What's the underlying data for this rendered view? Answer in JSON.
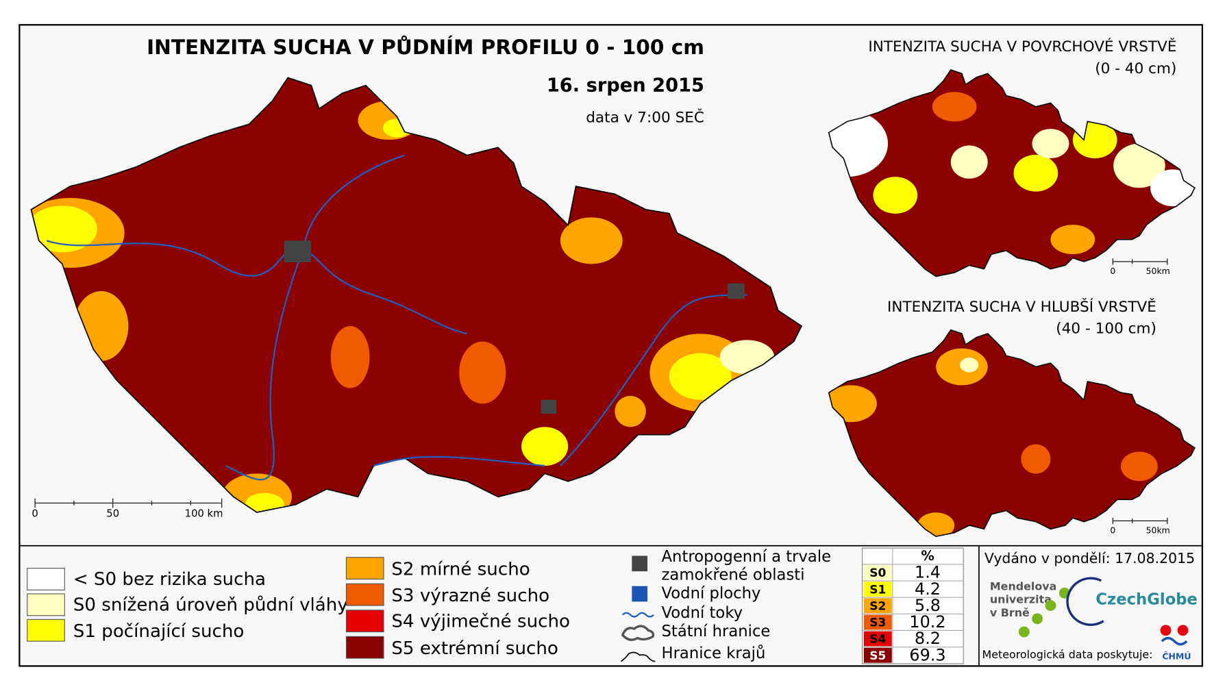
{
  "header": {
    "title": "INTENZITA SUCHA V PŮDNÍM PROFILU 0 - 100 cm",
    "date": "16. srpen 2015",
    "data_time": "data v 7:00 SEČ"
  },
  "main_map": {
    "scale_labels": [
      "0",
      "50",
      "100 km"
    ]
  },
  "insets": [
    {
      "title": "INTENZITA SUCHA V POVRCHOVÉ VRSTVĚ",
      "depth": "(0 - 40 cm)",
      "scale_labels": [
        "0",
        "50km"
      ]
    },
    {
      "title": "INTENZITA SUCHA V HLUBŠÍ VRSTVĚ",
      "depth": "(40 - 100 cm)",
      "scale_labels": [
        "0",
        "50km"
      ]
    }
  ],
  "legend": {
    "classes": [
      {
        "label": "< S0 bez rizika sucha",
        "color": "#ffffff"
      },
      {
        "label": "S0 snížená úroveň půdní vláhy",
        "color": "#ffffc0"
      },
      {
        "label": "S1 počínající sucho",
        "color": "#ffff00"
      },
      {
        "label": "S2 mírné sucho",
        "color": "#ffa500"
      },
      {
        "label": "S3 výrazné sucho",
        "color": "#f05a00"
      },
      {
        "label": "S4 výjimečné sucho",
        "color": "#e60000"
      },
      {
        "label": "S5 extrémní sucho",
        "color": "#8b0000"
      }
    ],
    "symbols": {
      "anthropogenic": [
        "Antropogenní a trvale",
        "zamokřené oblasti"
      ],
      "water_bodies": "Vodní plochy",
      "rivers": "Vodní toky",
      "state_border": "Státní hranice",
      "region_borders": "Hranice krajů"
    }
  },
  "stats": {
    "header": "%",
    "rows": [
      {
        "class": "S0",
        "percent": "1.4"
      },
      {
        "class": "S1",
        "percent": "4.2"
      },
      {
        "class": "S2",
        "percent": "5.8"
      },
      {
        "class": "S3",
        "percent": "10.2"
      },
      {
        "class": "S4",
        "percent": "8.2"
      },
      {
        "class": "S5",
        "percent": "69.3"
      }
    ]
  },
  "issued": "Vydáno v pondělí: 17.08.2015",
  "logos": {
    "mendel": [
      "Mendelova",
      "univerzita",
      "v Brně"
    ],
    "czechglobe": "CzechGlobe",
    "chmu": "ČHMÚ"
  },
  "data_provider": "Meteorologická data poskytuje:"
}
